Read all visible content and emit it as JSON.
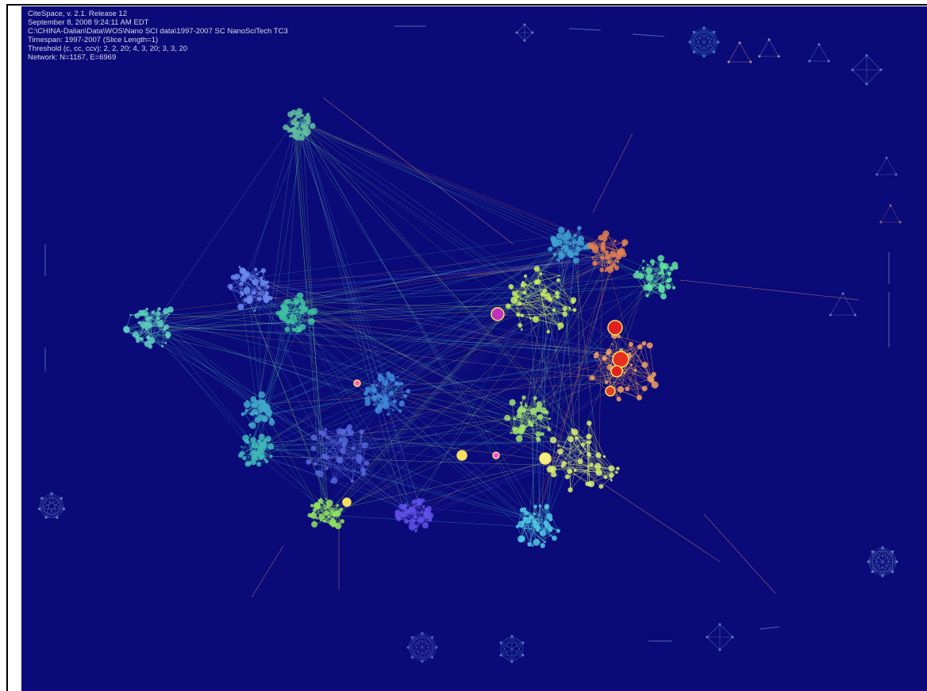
{
  "header": {
    "lines": [
      "CiteSpace, v. 2.1. Release 12",
      "September 8, 2008 9:24:11 AM EDT",
      "C:\\CHINA-Dalian\\Data\\WOS\\Nano SCI data\\1997-2007 SC NanoSciTech TC3",
      "Timespan: 1997-2007 (Slice Length=1)",
      "Threshold (c, cc, ccv): 2, 2, 20; 4, 3, 20; 3, 3, 20",
      "Network: N=1167, E=6969"
    ]
  }
}
